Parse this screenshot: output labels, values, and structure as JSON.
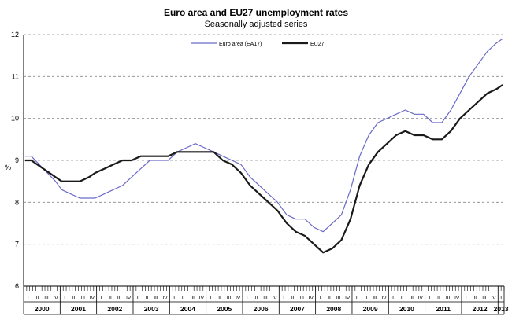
{
  "chart_data": {
    "type": "line",
    "title": "Euro area and EU27 unemployment rates",
    "subtitle": "Seasonally adjusted series",
    "ylabel": "%",
    "ylim": [
      6,
      12
    ],
    "yticks": [
      "6",
      "7",
      "8",
      "9",
      "10",
      "11",
      "12"
    ],
    "grid": "horizontal dashed",
    "legend_position": "top-center",
    "years": [
      "2000",
      "2001",
      "2002",
      "2003",
      "2004",
      "2005",
      "2006",
      "2007",
      "2008",
      "2009",
      "2010",
      "2011",
      "2012",
      "2013"
    ],
    "quarter_labels": [
      "I",
      "II",
      "III",
      "IV"
    ],
    "x_start": "2000-01",
    "x_end": "2013-02",
    "series": [
      {
        "name": "Euro area (EA17)",
        "color": "#6a6ac8",
        "points": [
          [
            "2000-01",
            9.1
          ],
          [
            "2000-03",
            9.1
          ],
          [
            "2000-07",
            8.8
          ],
          [
            "2000-11",
            8.5
          ],
          [
            "2001-01",
            8.3
          ],
          [
            "2001-04",
            8.2
          ],
          [
            "2001-07",
            8.1
          ],
          [
            "2001-10",
            8.1
          ],
          [
            "2001-12",
            8.1
          ],
          [
            "2002-03",
            8.2
          ],
          [
            "2002-06",
            8.3
          ],
          [
            "2002-09",
            8.4
          ],
          [
            "2002-12",
            8.6
          ],
          [
            "2003-03",
            8.8
          ],
          [
            "2003-06",
            9.0
          ],
          [
            "2003-09",
            9.0
          ],
          [
            "2003-12",
            9.0
          ],
          [
            "2004-03",
            9.2
          ],
          [
            "2004-06",
            9.3
          ],
          [
            "2004-09",
            9.4
          ],
          [
            "2004-12",
            9.3
          ],
          [
            "2005-03",
            9.2
          ],
          [
            "2005-06",
            9.1
          ],
          [
            "2005-09",
            9.0
          ],
          [
            "2005-12",
            8.9
          ],
          [
            "2006-03",
            8.6
          ],
          [
            "2006-06",
            8.4
          ],
          [
            "2006-09",
            8.2
          ],
          [
            "2006-12",
            8.0
          ],
          [
            "2007-03",
            7.7
          ],
          [
            "2007-06",
            7.6
          ],
          [
            "2007-09",
            7.6
          ],
          [
            "2007-12",
            7.4
          ],
          [
            "2008-03",
            7.3
          ],
          [
            "2008-06",
            7.5
          ],
          [
            "2008-09",
            7.7
          ],
          [
            "2008-12",
            8.3
          ],
          [
            "2009-03",
            9.1
          ],
          [
            "2009-06",
            9.6
          ],
          [
            "2009-09",
            9.9
          ],
          [
            "2009-12",
            10.0
          ],
          [
            "2010-03",
            10.1
          ],
          [
            "2010-06",
            10.2
          ],
          [
            "2010-09",
            10.1
          ],
          [
            "2010-12",
            10.1
          ],
          [
            "2011-03",
            9.9
          ],
          [
            "2011-06",
            9.9
          ],
          [
            "2011-09",
            10.2
          ],
          [
            "2011-12",
            10.6
          ],
          [
            "2012-03",
            11.0
          ],
          [
            "2012-06",
            11.3
          ],
          [
            "2012-09",
            11.6
          ],
          [
            "2012-12",
            11.8
          ],
          [
            "2013-02",
            11.9
          ]
        ]
      },
      {
        "name": "EU27",
        "color": "#1a1a1a",
        "points": [
          [
            "2000-01",
            9.0
          ],
          [
            "2000-03",
            9.0
          ],
          [
            "2000-07",
            8.8
          ],
          [
            "2000-11",
            8.6
          ],
          [
            "2001-01",
            8.5
          ],
          [
            "2001-04",
            8.5
          ],
          [
            "2001-07",
            8.5
          ],
          [
            "2001-10",
            8.6
          ],
          [
            "2001-12",
            8.7
          ],
          [
            "2002-03",
            8.8
          ],
          [
            "2002-06",
            8.9
          ],
          [
            "2002-09",
            9.0
          ],
          [
            "2002-12",
            9.0
          ],
          [
            "2003-03",
            9.1
          ],
          [
            "2003-06",
            9.1
          ],
          [
            "2003-09",
            9.1
          ],
          [
            "2003-12",
            9.1
          ],
          [
            "2004-03",
            9.2
          ],
          [
            "2004-06",
            9.2
          ],
          [
            "2004-09",
            9.2
          ],
          [
            "2004-12",
            9.2
          ],
          [
            "2005-03",
            9.2
          ],
          [
            "2005-06",
            9.0
          ],
          [
            "2005-09",
            8.9
          ],
          [
            "2005-12",
            8.7
          ],
          [
            "2006-03",
            8.4
          ],
          [
            "2006-06",
            8.2
          ],
          [
            "2006-09",
            8.0
          ],
          [
            "2006-12",
            7.8
          ],
          [
            "2007-03",
            7.5
          ],
          [
            "2007-06",
            7.3
          ],
          [
            "2007-09",
            7.2
          ],
          [
            "2007-12",
            7.0
          ],
          [
            "2008-03",
            6.8
          ],
          [
            "2008-06",
            6.9
          ],
          [
            "2008-09",
            7.1
          ],
          [
            "2008-12",
            7.6
          ],
          [
            "2009-03",
            8.4
          ],
          [
            "2009-06",
            8.9
          ],
          [
            "2009-09",
            9.2
          ],
          [
            "2009-12",
            9.4
          ],
          [
            "2010-03",
            9.6
          ],
          [
            "2010-06",
            9.7
          ],
          [
            "2010-09",
            9.6
          ],
          [
            "2010-12",
            9.6
          ],
          [
            "2011-03",
            9.5
          ],
          [
            "2011-06",
            9.5
          ],
          [
            "2011-09",
            9.7
          ],
          [
            "2011-12",
            10.0
          ],
          [
            "2012-03",
            10.2
          ],
          [
            "2012-06",
            10.4
          ],
          [
            "2012-09",
            10.6
          ],
          [
            "2012-12",
            10.7
          ],
          [
            "2013-02",
            10.8
          ]
        ]
      }
    ]
  }
}
